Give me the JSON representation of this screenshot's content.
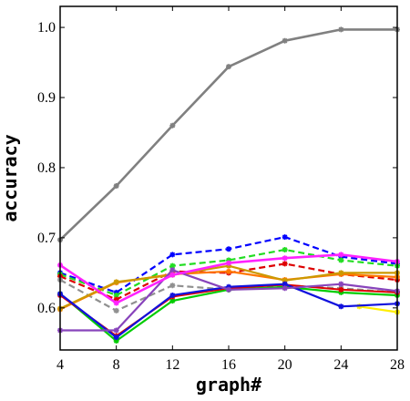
{
  "chart_data": {
    "type": "line",
    "xlabel": "graph#",
    "ylabel": "accuracy",
    "xlim": [
      4,
      28
    ],
    "ylim": [
      0.54,
      1.03
    ],
    "x": [
      4,
      8,
      12,
      16,
      20,
      24,
      28
    ],
    "x_ticks": [
      "4",
      "8",
      "12",
      "16",
      "20",
      "24",
      "28"
    ],
    "y_ticks": [
      "0.6",
      "0.7",
      "0.8",
      "0.9",
      "1.0"
    ],
    "y_tick_values": [
      0.6,
      0.7,
      0.8,
      0.9,
      1.0
    ],
    "grid": false,
    "legend": "none",
    "series": [
      {
        "color": "#808080",
        "dash": false,
        "width": 2.6,
        "values": [
          0.697,
          0.774,
          0.86,
          0.944,
          0.981,
          0.997,
          0.997
        ]
      },
      {
        "color": "#0000ff",
        "dash": true,
        "width": 2.2,
        "values": [
          0.65,
          0.622,
          0.676,
          0.684,
          0.701,
          0.673,
          0.663
        ]
      },
      {
        "color": "#22dd22",
        "dash": true,
        "width": 2.2,
        "values": [
          0.648,
          0.618,
          0.66,
          0.668,
          0.683,
          0.668,
          0.66
        ]
      },
      {
        "color": "#dd0000",
        "dash": true,
        "width": 2.2,
        "values": [
          0.645,
          0.612,
          0.652,
          0.65,
          0.663,
          0.648,
          0.64
        ]
      },
      {
        "color": "#909090",
        "dash": true,
        "width": 2.2,
        "values": [
          0.64,
          0.596,
          0.632,
          0.626,
          0.632,
          0.628,
          0.622
        ]
      },
      {
        "color": "#ffee00",
        "dash": false,
        "width": 2.2,
        "values": [
          null,
          null,
          null,
          null,
          null,
          0.602,
          0.594
        ]
      },
      {
        "color": "#ff7700",
        "dash": false,
        "width": 2.2,
        "values": [
          0.598,
          0.636,
          0.648,
          0.652,
          0.64,
          0.648,
          0.644
        ]
      },
      {
        "color": "#cc9900",
        "dash": false,
        "width": 2.2,
        "values": [
          0.599,
          0.637,
          0.647,
          0.66,
          0.639,
          0.65,
          0.65
        ]
      },
      {
        "color": "#00cc00",
        "dash": false,
        "width": 2.2,
        "values": [
          0.62,
          0.553,
          0.61,
          0.626,
          0.63,
          0.622,
          0.618
        ]
      },
      {
        "color": "#dd0000",
        "dash": false,
        "width": 2.0,
        "values": [
          0.618,
          0.56,
          0.616,
          0.628,
          0.633,
          0.626,
          0.622
        ]
      },
      {
        "color": "#1111dd",
        "dash": false,
        "width": 2.2,
        "values": [
          0.62,
          0.558,
          0.618,
          0.63,
          0.634,
          0.602,
          0.606
        ]
      },
      {
        "color": "#8844bb",
        "dash": false,
        "width": 2.2,
        "values": [
          0.568,
          0.568,
          0.654,
          0.626,
          0.628,
          0.634,
          0.624
        ]
      },
      {
        "color": "#ff22ff",
        "dash": false,
        "width": 2.6,
        "values": [
          0.661,
          0.607,
          0.647,
          0.664,
          0.671,
          0.676,
          0.666
        ]
      }
    ]
  }
}
